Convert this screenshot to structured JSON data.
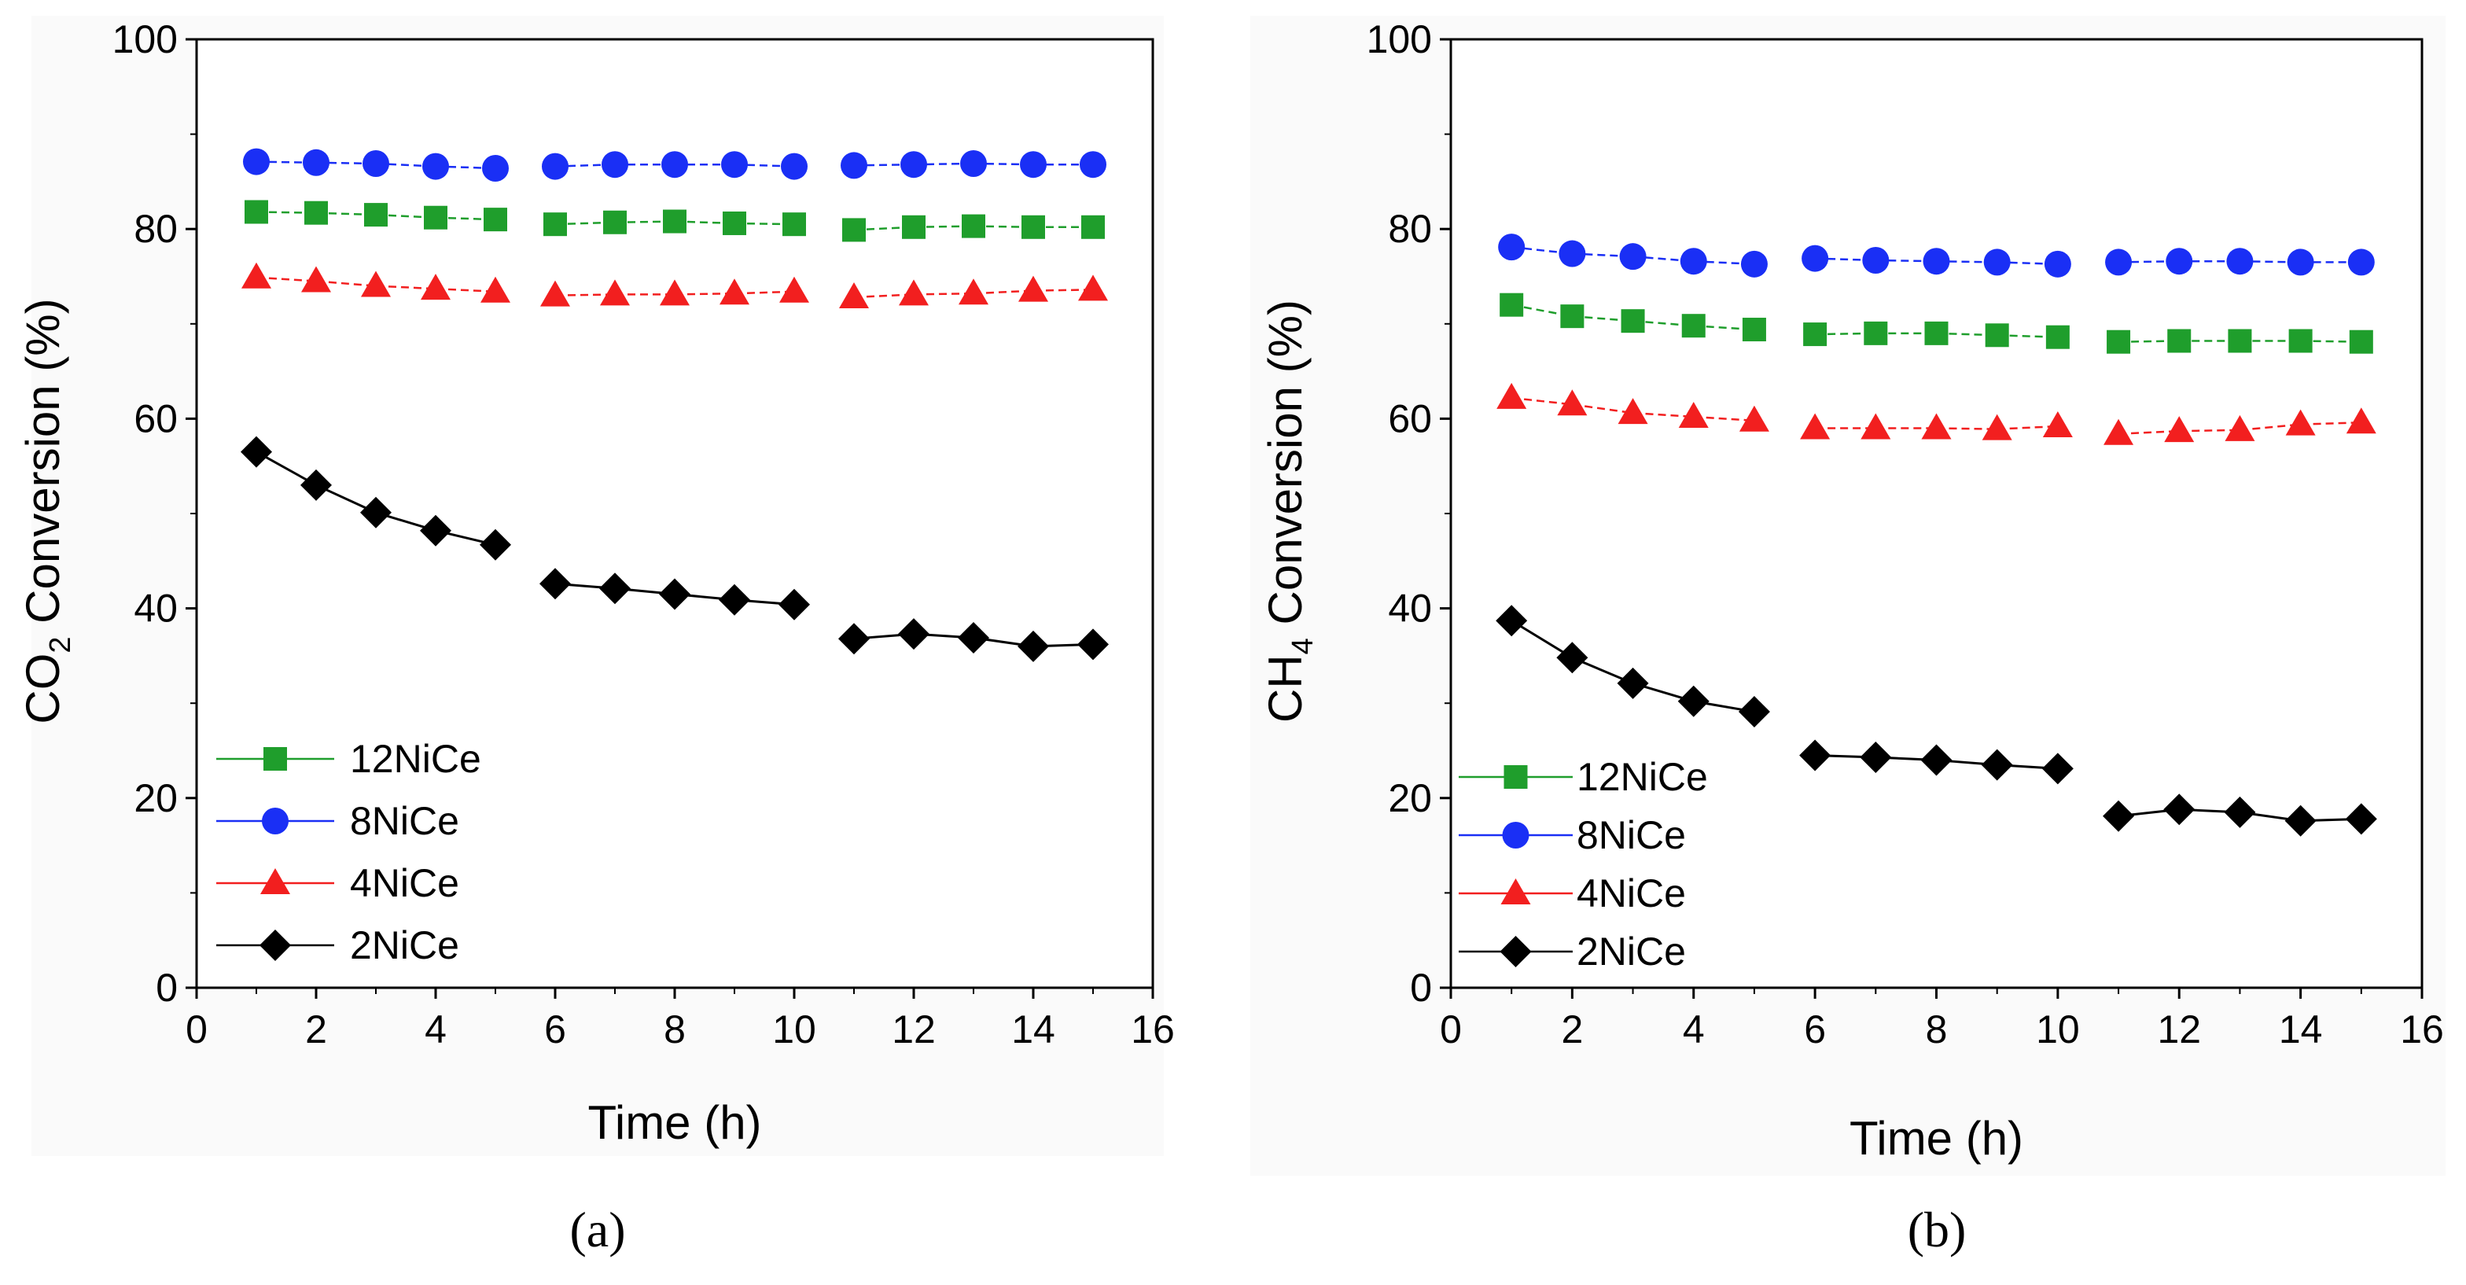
{
  "chart_data": [
    {
      "type": "line",
      "panel_label": "(a)",
      "xlabel": "Time (h)",
      "ylabel_parts": [
        "CO",
        "2",
        " Conversion (%)"
      ],
      "xlim": [
        0,
        16
      ],
      "ylim": [
        0,
        100
      ],
      "xticks": [
        0,
        2,
        4,
        6,
        8,
        10,
        12,
        14,
        16
      ],
      "yticks": [
        0,
        20,
        40,
        60,
        80,
        100
      ],
      "legend_position": "bottom-left",
      "series": [
        {
          "name": "12NiCe",
          "color": "#1f9e2c",
          "marker": "square",
          "x": [
            1,
            2,
            3,
            4,
            5,
            6,
            7,
            8,
            9,
            10,
            11,
            12,
            13,
            14,
            15
          ],
          "y": [
            81.8,
            81.7,
            81.5,
            81.2,
            81.0,
            80.5,
            80.7,
            80.8,
            80.6,
            80.5,
            79.9,
            80.2,
            80.3,
            80.2,
            80.2
          ]
        },
        {
          "name": "8NiCe",
          "color": "#1a2ff5",
          "marker": "circle",
          "x": [
            1,
            2,
            3,
            4,
            5,
            6,
            7,
            8,
            9,
            10,
            11,
            12,
            13,
            14,
            15
          ],
          "y": [
            87.1,
            87.0,
            86.9,
            86.6,
            86.4,
            86.6,
            86.8,
            86.8,
            86.8,
            86.6,
            86.7,
            86.8,
            86.9,
            86.8,
            86.8
          ]
        },
        {
          "name": "4NiCe",
          "color": "#f21f1f",
          "marker": "triangle",
          "x": [
            1,
            2,
            3,
            4,
            5,
            6,
            7,
            8,
            9,
            10,
            11,
            12,
            13,
            14,
            15
          ],
          "y": [
            74.9,
            74.5,
            74.0,
            73.7,
            73.4,
            73.0,
            73.1,
            73.1,
            73.2,
            73.4,
            72.8,
            73.1,
            73.2,
            73.5,
            73.6
          ]
        },
        {
          "name": "2NiCe",
          "color": "#000000",
          "marker": "diamond",
          "x": [
            1,
            2,
            3,
            4,
            5,
            6,
            7,
            8,
            9,
            10,
            11,
            12,
            13,
            14,
            15
          ],
          "y": [
            56.5,
            53.0,
            50.1,
            48.2,
            46.7,
            42.6,
            42.1,
            41.5,
            40.9,
            40.4,
            36.8,
            37.3,
            36.9,
            36.0,
            36.2
          ]
        }
      ]
    },
    {
      "type": "line",
      "panel_label": "(b)",
      "xlabel": "Time (h)",
      "ylabel_parts": [
        "CH",
        "4",
        " Conversion (%)"
      ],
      "xlim": [
        0,
        16
      ],
      "ylim": [
        0,
        100
      ],
      "xticks": [
        0,
        2,
        4,
        6,
        8,
        10,
        12,
        14,
        16
      ],
      "yticks": [
        0,
        20,
        40,
        60,
        80,
        100
      ],
      "legend_position": "bottom-left",
      "series": [
        {
          "name": "12NiCe",
          "color": "#1f9e2c",
          "marker": "square",
          "x": [
            1,
            2,
            3,
            4,
            5,
            6,
            7,
            8,
            9,
            10,
            11,
            12,
            13,
            14,
            15
          ],
          "y": [
            72.0,
            70.8,
            70.3,
            69.8,
            69.4,
            68.9,
            69.0,
            69.0,
            68.8,
            68.6,
            68.1,
            68.2,
            68.2,
            68.2,
            68.1
          ]
        },
        {
          "name": "8NiCe",
          "color": "#1a2ff5",
          "marker": "circle",
          "x": [
            1,
            2,
            3,
            4,
            5,
            6,
            7,
            8,
            9,
            10,
            11,
            12,
            13,
            14,
            15
          ],
          "y": [
            78.1,
            77.4,
            77.1,
            76.6,
            76.3,
            76.9,
            76.7,
            76.6,
            76.5,
            76.3,
            76.5,
            76.6,
            76.6,
            76.5,
            76.5
          ]
        },
        {
          "name": "4NiCe",
          "color": "#f21f1f",
          "marker": "triangle",
          "x": [
            1,
            2,
            3,
            4,
            5,
            6,
            7,
            8,
            9,
            10,
            11,
            12,
            13,
            14,
            15
          ],
          "y": [
            62.2,
            61.5,
            60.6,
            60.2,
            59.8,
            59.0,
            59.0,
            59.0,
            58.9,
            59.2,
            58.4,
            58.7,
            58.8,
            59.4,
            59.6
          ]
        },
        {
          "name": "2NiCe",
          "color": "#000000",
          "marker": "diamond",
          "x": [
            1,
            2,
            3,
            4,
            5,
            6,
            7,
            8,
            9,
            10,
            11,
            12,
            13,
            14,
            15
          ],
          "y": [
            38.7,
            34.8,
            32.1,
            30.2,
            29.1,
            24.5,
            24.3,
            24.0,
            23.5,
            23.1,
            18.1,
            18.8,
            18.5,
            17.6,
            17.8
          ]
        }
      ]
    }
  ]
}
